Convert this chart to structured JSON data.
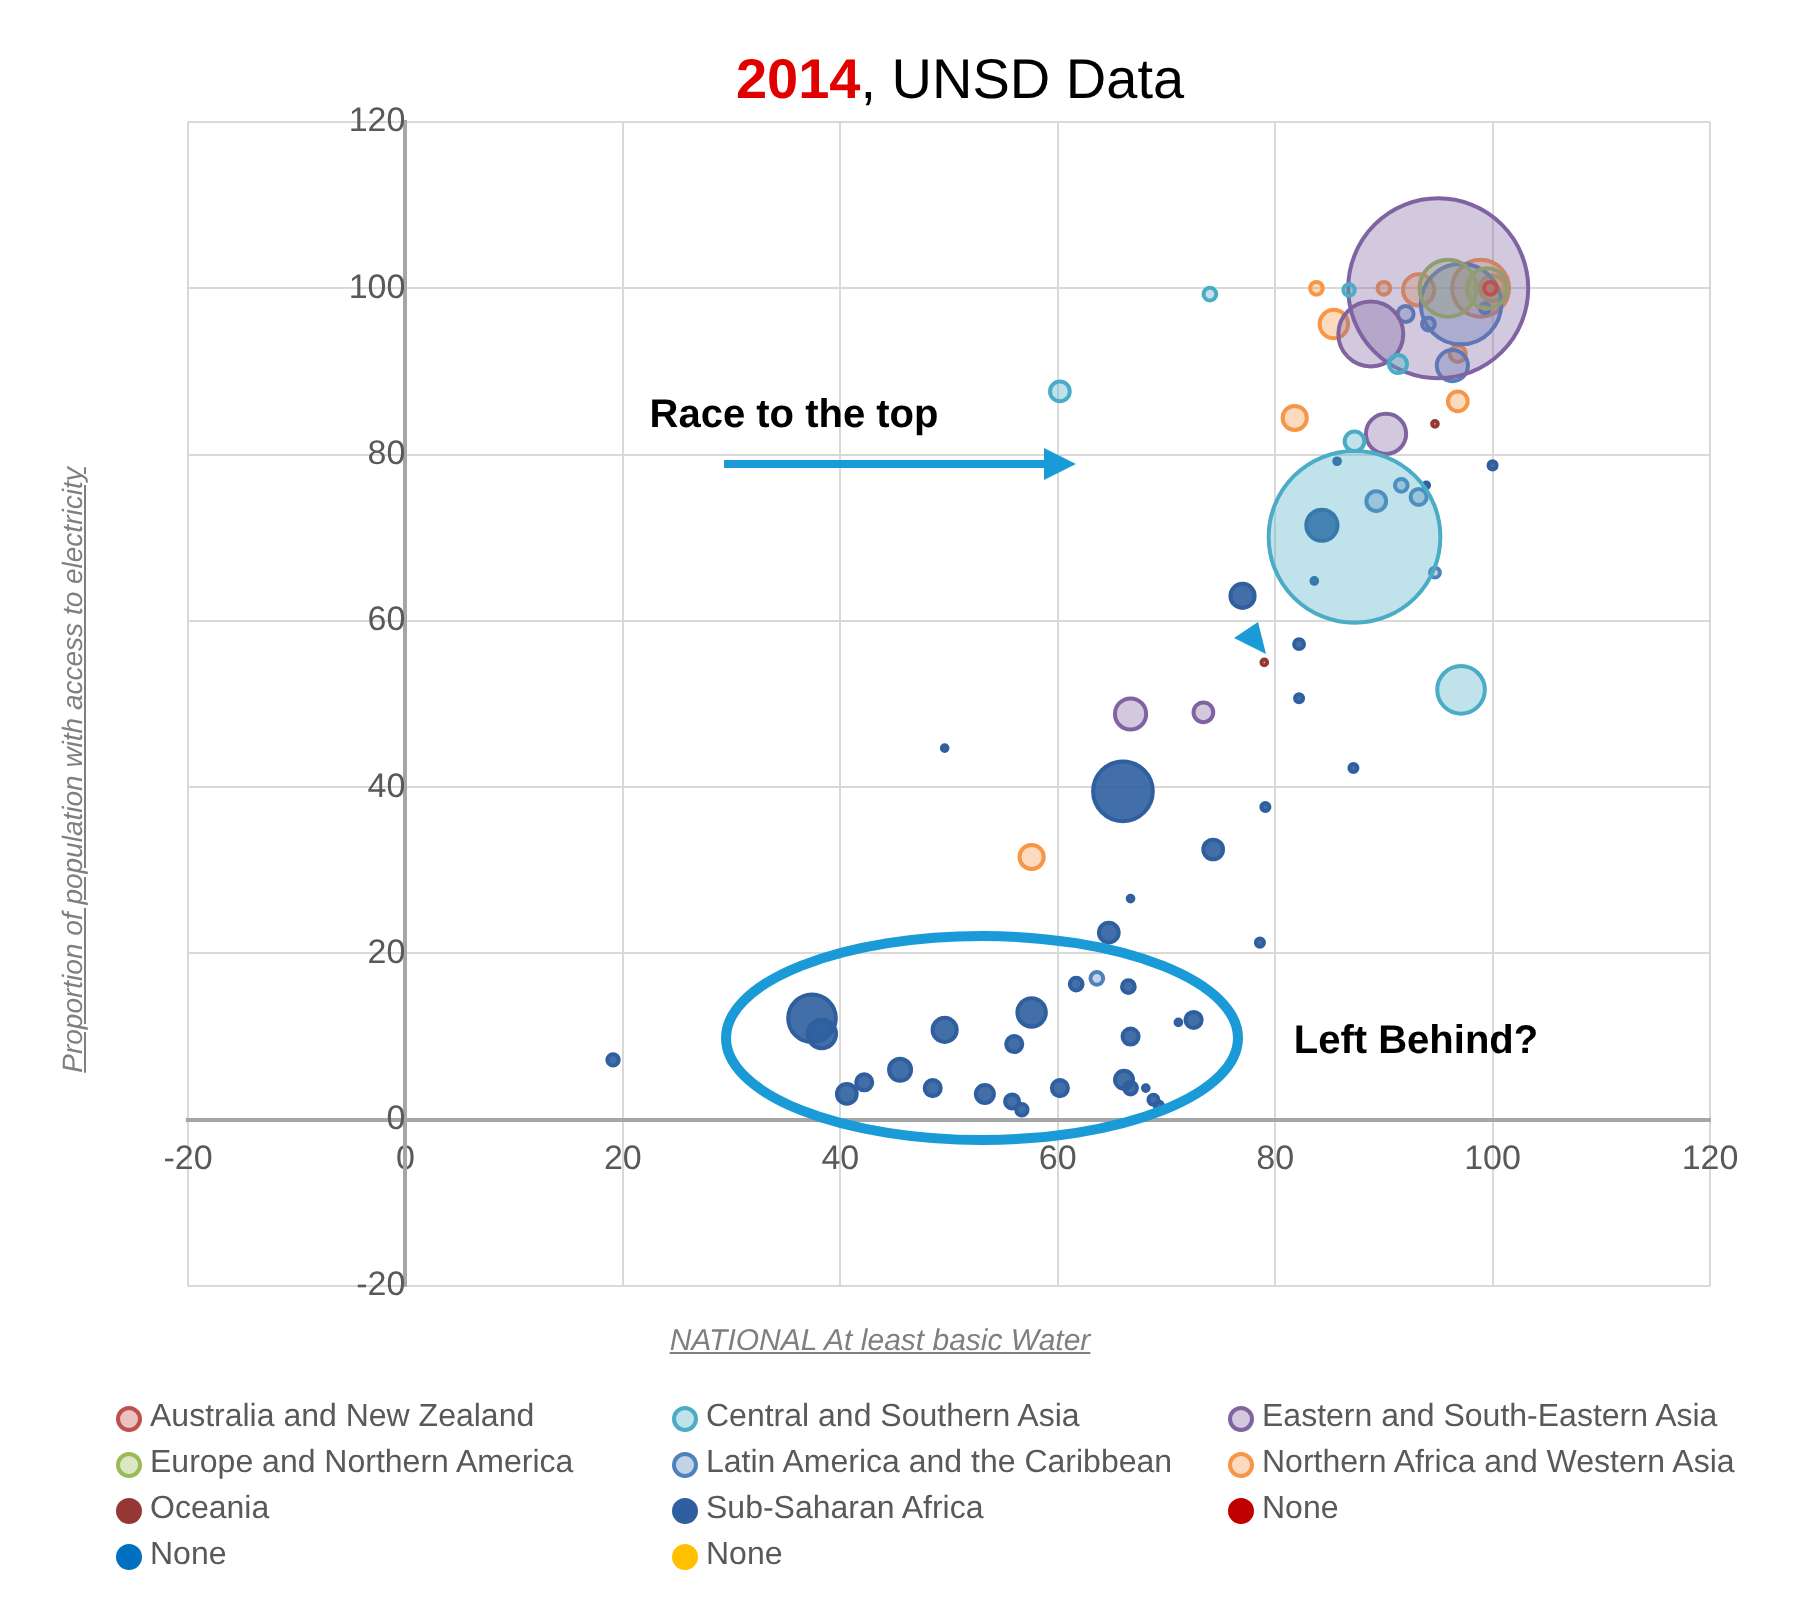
{
  "chart_data": {
    "type": "bubble",
    "title": "2014, UNSD Data",
    "xlabel": "NATIONAL  At least basic  Water",
    "ylabel": "Proportion of population with access to electricity",
    "xlim": [
      -20,
      120
    ],
    "xticks": [
      -20,
      0,
      20,
      40,
      60,
      80,
      100,
      120
    ],
    "ylim": [
      -20,
      120
    ],
    "yticks": [
      -20,
      0,
      20,
      40,
      60,
      80,
      100,
      120
    ],
    "grid": true,
    "legend": "bottom",
    "marker": "circle",
    "annotations": [
      "Race to the top",
      "Left Behind?"
    ],
    "series": [
      {
        "name": "Australia and New Zealand",
        "color": "#c0504d",
        "x": [
          99.8
        ],
        "values": [
          100
        ],
        "sizes": [
          0.005
        ]
      },
      {
        "name": "Central and Southern Asia",
        "color": "#4bacc6",
        "x": [
          87.3,
          97.1,
          60.2,
          74.0,
          87.3,
          91.3,
          86.8
        ],
        "values": [
          70.1,
          51.7,
          87.6,
          99.3,
          81.6,
          90.9,
          99.8
        ],
        "sizes": [
          0.91,
          0.07,
          0.012,
          0.005,
          0.012,
          0.01,
          0.004
        ]
      },
      {
        "name": "Eastern and South-Eastern Asia",
        "color": "#8064a2",
        "x": [
          95.0,
          88.8,
          90.2,
          66.7,
          73.4
        ],
        "values": [
          100,
          94.5,
          82.5,
          48.8,
          49.0
        ],
        "sizes": [
          1,
          0.13,
          0.05,
          0.03,
          0.012
        ]
      },
      {
        "name": "Europe and Northern America",
        "color": "#9bbb59",
        "x": [
          95.9,
          99.5
        ],
        "values": [
          100,
          100
        ],
        "sizes": [
          0.1,
          0.05
        ]
      },
      {
        "name": "Latin America and the Caribbean",
        "color": "#4f81bd",
        "x": [
          97.1,
          96.3,
          89.3,
          91.6,
          93.2,
          92.0,
          94.1,
          94.7,
          99.3,
          63.6
        ],
        "values": [
          98.1,
          90.7,
          74.4,
          76.3,
          74.9,
          96.9,
          95.7,
          65.8,
          97.6,
          17.0
        ],
        "sizes": [
          0.2,
          0.03,
          0.012,
          0.005,
          0.008,
          0.008,
          0.005,
          0.003,
          0.003,
          0.005
        ]
      },
      {
        "name": "Northern Africa and Western Asia",
        "color": "#f79646",
        "x": [
          85.4,
          81.8,
          96.8,
          57.6,
          83.8,
          90.0,
          93.2,
          98.9,
          100,
          96.8
        ],
        "values": [
          95.7,
          84.4,
          86.4,
          31.6,
          100,
          100,
          99.8,
          100,
          100,
          92.1
        ],
        "sizes": [
          0.025,
          0.018,
          0.012,
          0.018,
          0.005,
          0.005,
          0.03,
          0.1,
          0.02,
          0.008
        ]
      },
      {
        "name": "Oceania",
        "color": "#953735",
        "x": [
          94.7,
          79.0
        ],
        "values": [
          83.7,
          55.0
        ],
        "sizes": [
          0.001,
          0.001
        ]
      },
      {
        "name": "Sub-Saharan Africa",
        "color": "#2f5f9e",
        "x": [
          84.3,
          77.0,
          66.0,
          74.3,
          82.2,
          82.2,
          87.2,
          79.1,
          66.7,
          78.6,
          100,
          93.9,
          83.6,
          85.7,
          64.7,
          37.4,
          38.3,
          49.6,
          57.6,
          56.0,
          61.7,
          66.5,
          66.7,
          72.5,
          71.1,
          40.6,
          42.2,
          45.5,
          48.5,
          53.3,
          55.8,
          56.7,
          60.2,
          66.1,
          66.7,
          68.1,
          68.8,
          69.3,
          19.1,
          49.6
        ],
        "values": [
          71.5,
          63.0,
          39.5,
          32.5,
          57.2,
          50.7,
          42.3,
          37.6,
          26.6,
          21.3,
          78.7,
          76.3,
          64.8,
          79.2,
          22.5,
          12.2,
          10.3,
          10.8,
          12.9,
          9.1,
          16.3,
          16.0,
          10.0,
          12.0,
          11.7,
          3.1,
          4.5,
          6.0,
          3.8,
          3.1,
          2.2,
          1.2,
          3.8,
          4.8,
          3.8,
          3.8,
          2.4,
          1.7,
          7.2,
          44.7
        ],
        "sizes": [
          0.03,
          0.018,
          0.11,
          0.012,
          0.003,
          0.002,
          0.002,
          0.002,
          0.001,
          0.002,
          0.002,
          0.001,
          0.001,
          0.001,
          0.012,
          0.07,
          0.025,
          0.018,
          0.025,
          0.008,
          0.005,
          0.005,
          0.008,
          0.008,
          0.001,
          0.012,
          0.008,
          0.015,
          0.008,
          0.01,
          0.006,
          0.004,
          0.008,
          0.01,
          0.005,
          0.001,
          0.003,
          0.002,
          0.004,
          0.001
        ]
      },
      {
        "name": "None",
        "color": "#c00000"
      },
      {
        "name": "None",
        "color": "#0070c0"
      },
      {
        "name": "None",
        "color": "#ffc000"
      }
    ]
  }
}
